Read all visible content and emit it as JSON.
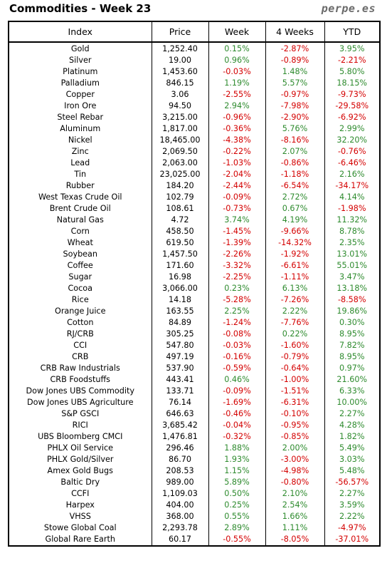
{
  "header": {
    "title": "Commodities - Week 23",
    "brand": "perpe.es"
  },
  "columns": [
    "Index",
    "Price",
    "Week",
    "4 Weeks",
    "YTD"
  ],
  "colors": {
    "positive": "#2e8b2e",
    "negative": "#d40000"
  },
  "rows": [
    [
      "Gold",
      "1,252.40",
      "0.15%",
      "-2.87%",
      "3.95%"
    ],
    [
      "Silver",
      "19.00",
      "0.96%",
      "-0.89%",
      "-2.21%"
    ],
    [
      "Platinum",
      "1,453.60",
      "-0.03%",
      "1.48%",
      "5.80%"
    ],
    [
      "Palladium",
      "846.15",
      "1.19%",
      "5.57%",
      "18.15%"
    ],
    [
      "Copper",
      "3.06",
      "-2.55%",
      "-0.97%",
      "-9.73%"
    ],
    [
      "Iron Ore",
      "94.50",
      "2.94%",
      "-7.98%",
      "-29.58%"
    ],
    [
      "Steel Rebar",
      "3,215.00",
      "-0.96%",
      "-2.90%",
      "-6.92%"
    ],
    [
      "Aluminum",
      "1,817.00",
      "-0.36%",
      "5.76%",
      "2.99%"
    ],
    [
      "Nickel",
      "18,465.00",
      "-4.38%",
      "-8.16%",
      "32.20%"
    ],
    [
      "Zinc",
      "2,069.50",
      "-0.22%",
      "2.07%",
      "-0.76%"
    ],
    [
      "Lead",
      "2,063.00",
      "-1.03%",
      "-0.86%",
      "-6.46%"
    ],
    [
      "Tin",
      "23,025.00",
      "-2.04%",
      "-1.18%",
      "2.16%"
    ],
    [
      "Rubber",
      "184.20",
      "-2.44%",
      "-6.54%",
      "-34.17%"
    ],
    [
      "West Texas Crude Oil",
      "102.79",
      "-0.09%",
      "2.72%",
      "4.14%"
    ],
    [
      "Brent Crude Oil",
      "108.61",
      "-0.73%",
      "0.67%",
      "-1.98%"
    ],
    [
      "Natural Gas",
      "4.72",
      "3.74%",
      "4.19%",
      "11.32%"
    ],
    [
      "Corn",
      "458.50",
      "-1.45%",
      "-9.66%",
      "8.78%"
    ],
    [
      "Wheat",
      "619.50",
      "-1.39%",
      "-14.32%",
      "2.35%"
    ],
    [
      "Soybean",
      "1,457.50",
      "-2.26%",
      "-1.92%",
      "13.01%"
    ],
    [
      "Coffee",
      "171.60",
      "-3.32%",
      "-6.61%",
      "55.01%"
    ],
    [
      "Sugar",
      "16.98",
      "-2.25%",
      "-1.11%",
      "3.47%"
    ],
    [
      "Cocoa",
      "3,066.00",
      "0.23%",
      "6.13%",
      "13.18%"
    ],
    [
      "Rice",
      "14.18",
      "-5.28%",
      "-7.26%",
      "-8.58%"
    ],
    [
      "Orange Juice",
      "163.55",
      "2.25%",
      "2.22%",
      "19.86%"
    ],
    [
      "Cotton",
      "84.89",
      "-1.24%",
      "-7.76%",
      "0.30%"
    ],
    [
      "RJ/CRB",
      "305.25",
      "-0.08%",
      "0.22%",
      "8.95%"
    ],
    [
      "CCI",
      "547.80",
      "-0.03%",
      "-1.60%",
      "7.82%"
    ],
    [
      "CRB",
      "497.19",
      "-0.16%",
      "-0.79%",
      "8.95%"
    ],
    [
      "CRB Raw Industrials",
      "537.90",
      "-0.59%",
      "-0.64%",
      "0.97%"
    ],
    [
      "CRB Foodstuffs",
      "443.41",
      "0.46%",
      "-1.00%",
      "21.60%"
    ],
    [
      "Dow Jones UBS Commodity",
      "133.71",
      "-0.09%",
      "-1.51%",
      "6.33%"
    ],
    [
      "Dow Jones UBS Agriculture",
      "76.14",
      "-1.69%",
      "-6.31%",
      "10.00%"
    ],
    [
      "S&P GSCI",
      "646.63",
      "-0.46%",
      "-0.10%",
      "2.27%"
    ],
    [
      "RICI",
      "3,685.42",
      "-0.04%",
      "-0.95%",
      "4.28%"
    ],
    [
      "UBS Bloomberg CMCI",
      "1,476.81",
      "-0.32%",
      "-0.85%",
      "1.82%"
    ],
    [
      "PHLX Oil Service",
      "296.46",
      "1.88%",
      "2.00%",
      "5.49%"
    ],
    [
      "PHLX Gold/Silver",
      "86.70",
      "1.93%",
      "-3.00%",
      "3.03%"
    ],
    [
      "Amex Gold Bugs",
      "208.53",
      "1.15%",
      "-4.98%",
      "5.48%"
    ],
    [
      "Baltic Dry",
      "989.00",
      "5.89%",
      "-0.80%",
      "-56.57%"
    ],
    [
      "CCFI",
      "1,109.03",
      "0.50%",
      "2.10%",
      "2.27%"
    ],
    [
      "Harpex",
      "404.00",
      "0.25%",
      "2.54%",
      "3.59%"
    ],
    [
      "VHSS",
      "368.00",
      "0.55%",
      "1.66%",
      "2.22%"
    ],
    [
      "Stowe Global Coal",
      "2,293.78",
      "2.89%",
      "1.11%",
      "-4.97%"
    ],
    [
      "Global Rare Earth",
      "60.17",
      "-0.55%",
      "-8.05%",
      "-37.01%"
    ]
  ]
}
